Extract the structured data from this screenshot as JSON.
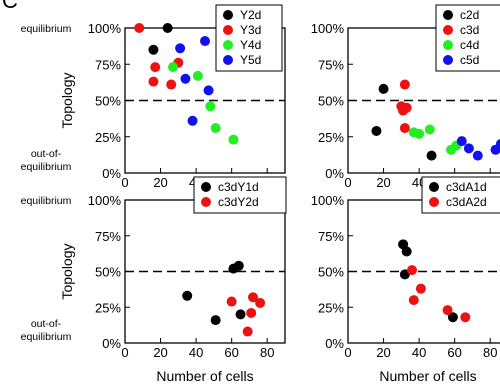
{
  "figure": {
    "panel_letter": "C",
    "side_labels": {
      "top": "equilibrium",
      "bottom_line1": "out-of-",
      "bottom_line2": "equilibrium"
    }
  },
  "colors": {
    "black": "#000000",
    "red": "#ee1111",
    "green": "#22ee22",
    "blue": "#1111ee"
  },
  "chart_data": [
    {
      "id": "top-left",
      "type": "scatter",
      "ylabel": "Topology",
      "xlabel": "",
      "xlim": [
        0,
        90
      ],
      "ylim": [
        0,
        100
      ],
      "xticks": [
        0,
        20,
        40,
        60,
        80
      ],
      "yticks": [
        "0%",
        "25%",
        "50%",
        "75%",
        "100%"
      ],
      "reference_line": 50,
      "legend_position": "top-right",
      "series": [
        {
          "name": "Y2d",
          "color": "#000000",
          "points": [
            [
              16,
              85
            ],
            [
              24,
              100
            ]
          ]
        },
        {
          "name": "Y3d",
          "color": "#ee1111",
          "points": [
            [
              8,
              100
            ],
            [
              16,
              63
            ],
            [
              17,
              73
            ],
            [
              26,
              61
            ],
            [
              30,
              76
            ]
          ]
        },
        {
          "name": "Y4d",
          "color": "#22ee22",
          "points": [
            [
              27,
              73
            ],
            [
              41,
              67
            ],
            [
              48,
              46
            ],
            [
              51,
              31
            ],
            [
              61,
              23
            ]
          ]
        },
        {
          "name": "Y5d",
          "color": "#1111ee",
          "points": [
            [
              31,
              86
            ],
            [
              34,
              65
            ],
            [
              38,
              36
            ],
            [
              47,
              57
            ],
            [
              45,
              91
            ]
          ]
        }
      ]
    },
    {
      "id": "top-right",
      "type": "scatter",
      "ylabel": "",
      "xlabel": "",
      "xlim": [
        0,
        90
      ],
      "ylim": [
        0,
        100
      ],
      "xticks": [
        0,
        20,
        40,
        60,
        80
      ],
      "yticks": [
        "0%",
        "25%",
        "50%",
        "75%",
        "100%"
      ],
      "reference_line": 50,
      "legend_position": "top-right",
      "series": [
        {
          "name": "c2d",
          "color": "#000000",
          "points": [
            [
              16,
              29
            ],
            [
              20,
              58
            ],
            [
              47,
              12
            ]
          ]
        },
        {
          "name": "c3d",
          "color": "#ee1111",
          "points": [
            [
              30,
              46
            ],
            [
              31,
              43
            ],
            [
              32,
              31
            ],
            [
              32,
              61
            ],
            [
              33,
              45
            ]
          ]
        },
        {
          "name": "c4d",
          "color": "#22ee22",
          "points": [
            [
              37,
              28
            ],
            [
              40,
              27
            ],
            [
              46,
              30
            ],
            [
              58,
              16
            ],
            [
              61,
              19
            ]
          ]
        },
        {
          "name": "c5d",
          "color": "#1111ee",
          "points": [
            [
              64,
              22
            ],
            [
              68,
              17
            ],
            [
              73,
              12
            ],
            [
              83,
              16
            ],
            [
              86,
              20
            ]
          ]
        }
      ]
    },
    {
      "id": "bottom-left",
      "type": "scatter",
      "ylabel": "Topology",
      "xlabel": "Number of cells",
      "xlim": [
        0,
        90
      ],
      "ylim": [
        0,
        100
      ],
      "xticks": [
        0,
        20,
        40,
        60,
        80
      ],
      "yticks": [
        "0%",
        "25%",
        "50%",
        "75%",
        "100%"
      ],
      "reference_line": 50,
      "legend_position": "top-right",
      "series": [
        {
          "name": "c3dY1d",
          "color": "#000000",
          "points": [
            [
              35,
              33
            ],
            [
              51,
              16
            ],
            [
              61,
              52
            ],
            [
              64,
              54
            ],
            [
              65,
              20
            ]
          ]
        },
        {
          "name": "c3dY2d",
          "color": "#ee1111",
          "points": [
            [
              60,
              29
            ],
            [
              69,
              8
            ],
            [
              71,
              21
            ],
            [
              72,
              32
            ],
            [
              76,
              28
            ]
          ]
        }
      ]
    },
    {
      "id": "bottom-right",
      "type": "scatter",
      "ylabel": "",
      "xlabel": "Number of cells",
      "xlim": [
        0,
        90
      ],
      "ylim": [
        0,
        100
      ],
      "xticks": [
        0,
        20,
        40,
        60,
        80
      ],
      "yticks": [
        "0%",
        "25%",
        "50%",
        "75%",
        "100%"
      ],
      "reference_line": 50,
      "legend_position": "top-right",
      "series": [
        {
          "name": "c3dA1d",
          "color": "#000000",
          "points": [
            [
              31,
              69
            ],
            [
              32,
              48
            ],
            [
              33,
              64
            ],
            [
              59,
              18
            ]
          ]
        },
        {
          "name": "c3dA2d",
          "color": "#ee1111",
          "points": [
            [
              36,
              51
            ],
            [
              37,
              30
            ],
            [
              41,
              38
            ],
            [
              56,
              23
            ],
            [
              66,
              18
            ]
          ]
        }
      ]
    }
  ]
}
